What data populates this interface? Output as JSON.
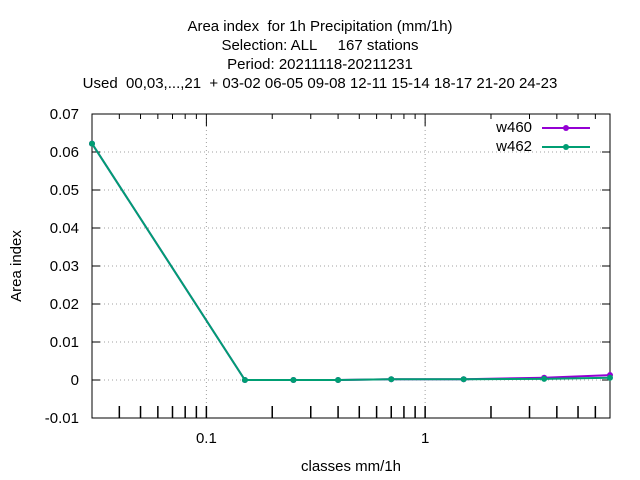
{
  "chart_data": {
    "type": "line",
    "title_lines": [
      "Area index  for 1h Precipitation (mm/1h)",
      "Selection: ALL     167 stations",
      "Period: 20211118-20211231",
      "Used  00,03,...,21  + 03-02 06-05 09-08 12-11 15-14 18-17 21-20 24-23"
    ],
    "xlabel": "classes mm/1h",
    "ylabel": "Area index",
    "x_scale": "log",
    "xlim": [
      0.03,
      7.0
    ],
    "ylim": [
      -0.01,
      0.07
    ],
    "x_major_ticks": [
      0.1,
      1
    ],
    "x_tick_labels": [
      "0.1",
      "1"
    ],
    "y_ticks": [
      -0.01,
      0,
      0.01,
      0.02,
      0.03,
      0.04,
      0.05,
      0.06,
      0.07
    ],
    "y_tick_labels": [
      "-0.01",
      "0",
      "0.01",
      "0.02",
      "0.03",
      "0.04",
      "0.05",
      "0.06",
      "0.07"
    ],
    "grid": true,
    "legend_position": "top-right",
    "series": [
      {
        "name": "w460",
        "color": "#9400d3",
        "x": [
          0.03,
          0.15,
          0.25,
          0.4,
          0.7,
          1.5,
          3.5,
          7.0
        ],
        "y": [
          0.0622,
          0.0,
          0.0,
          0.0,
          0.0002,
          0.0002,
          0.0006,
          0.0013
        ]
      },
      {
        "name": "w462",
        "color": "#009e73",
        "x": [
          0.03,
          0.15,
          0.25,
          0.4,
          0.7,
          1.5,
          3.5,
          7.0
        ],
        "y": [
          0.0622,
          0.0,
          0.0,
          0.0,
          0.0002,
          0.0002,
          0.0003,
          0.0006
        ]
      }
    ]
  }
}
